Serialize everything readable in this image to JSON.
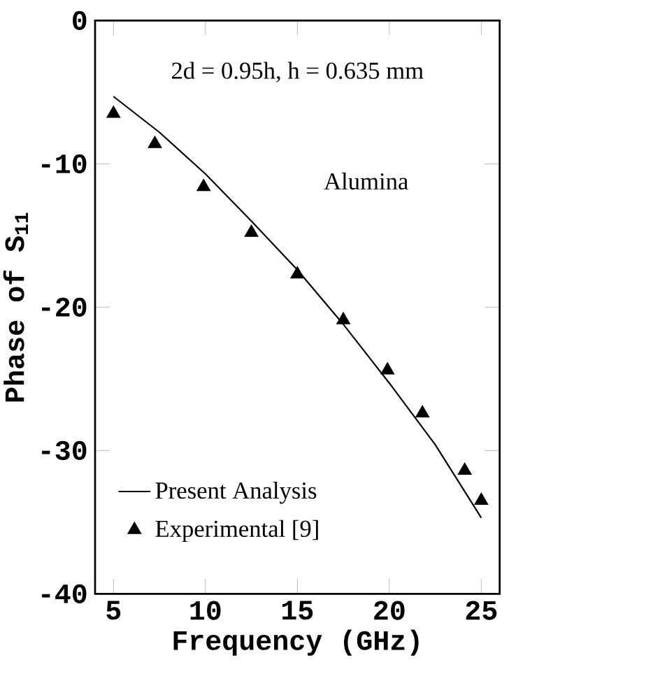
{
  "chart_data": {
    "type": "line",
    "xlabel": "Frequency (GHz)",
    "ylabel": "Phase of S$_{11}$",
    "xlim": [
      4,
      26
    ],
    "ylim": [
      -40,
      0
    ],
    "xticks": [
      5,
      10,
      15,
      20,
      25
    ],
    "yticks": [
      -40,
      -30,
      -20,
      -10,
      0
    ],
    "annotations": [
      "2d = 0.95h, h = 0.635 mm",
      "Alumina"
    ],
    "legend": "bottom left",
    "grid": false,
    "series": [
      {
        "name": "Present Analysis",
        "type": "line",
        "color": "#000000",
        "marker": "none",
        "x": [
          5,
          7.5,
          10,
          12.5,
          15,
          17.5,
          20,
          22.5,
          25
        ],
        "values": [
          -5.3,
          -7.8,
          -10.7,
          -14.0,
          -17.4,
          -21.2,
          -25.3,
          -29.6,
          -34.7
        ]
      },
      {
        "name": "Experimental [9]",
        "type": "scatter",
        "color": "#000000",
        "marker": "triangle",
        "x": [
          5,
          7.25,
          9.9,
          12.5,
          15.0,
          17.5,
          19.9,
          21.8,
          24.1,
          25.0
        ],
        "values": [
          -6.5,
          -8.6,
          -11.6,
          -14.8,
          -17.7,
          -20.9,
          -24.4,
          -27.4,
          -31.4,
          -33.5
        ]
      }
    ]
  }
}
